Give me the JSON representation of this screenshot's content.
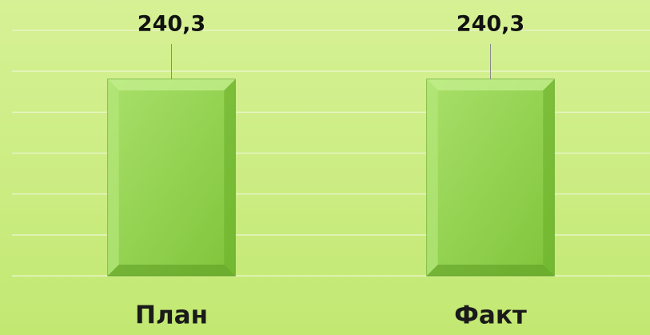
{
  "chart_data": {
    "type": "bar",
    "categories": [
      "План",
      "Факт"
    ],
    "values": [
      240.3,
      240.3
    ],
    "value_labels": [
      "240,3",
      "240,3"
    ],
    "color": "#92d050",
    "ylim": [
      0,
      300
    ],
    "yticks": [
      0,
      50,
      100,
      150,
      200,
      250,
      300
    ],
    "grid": true
  }
}
